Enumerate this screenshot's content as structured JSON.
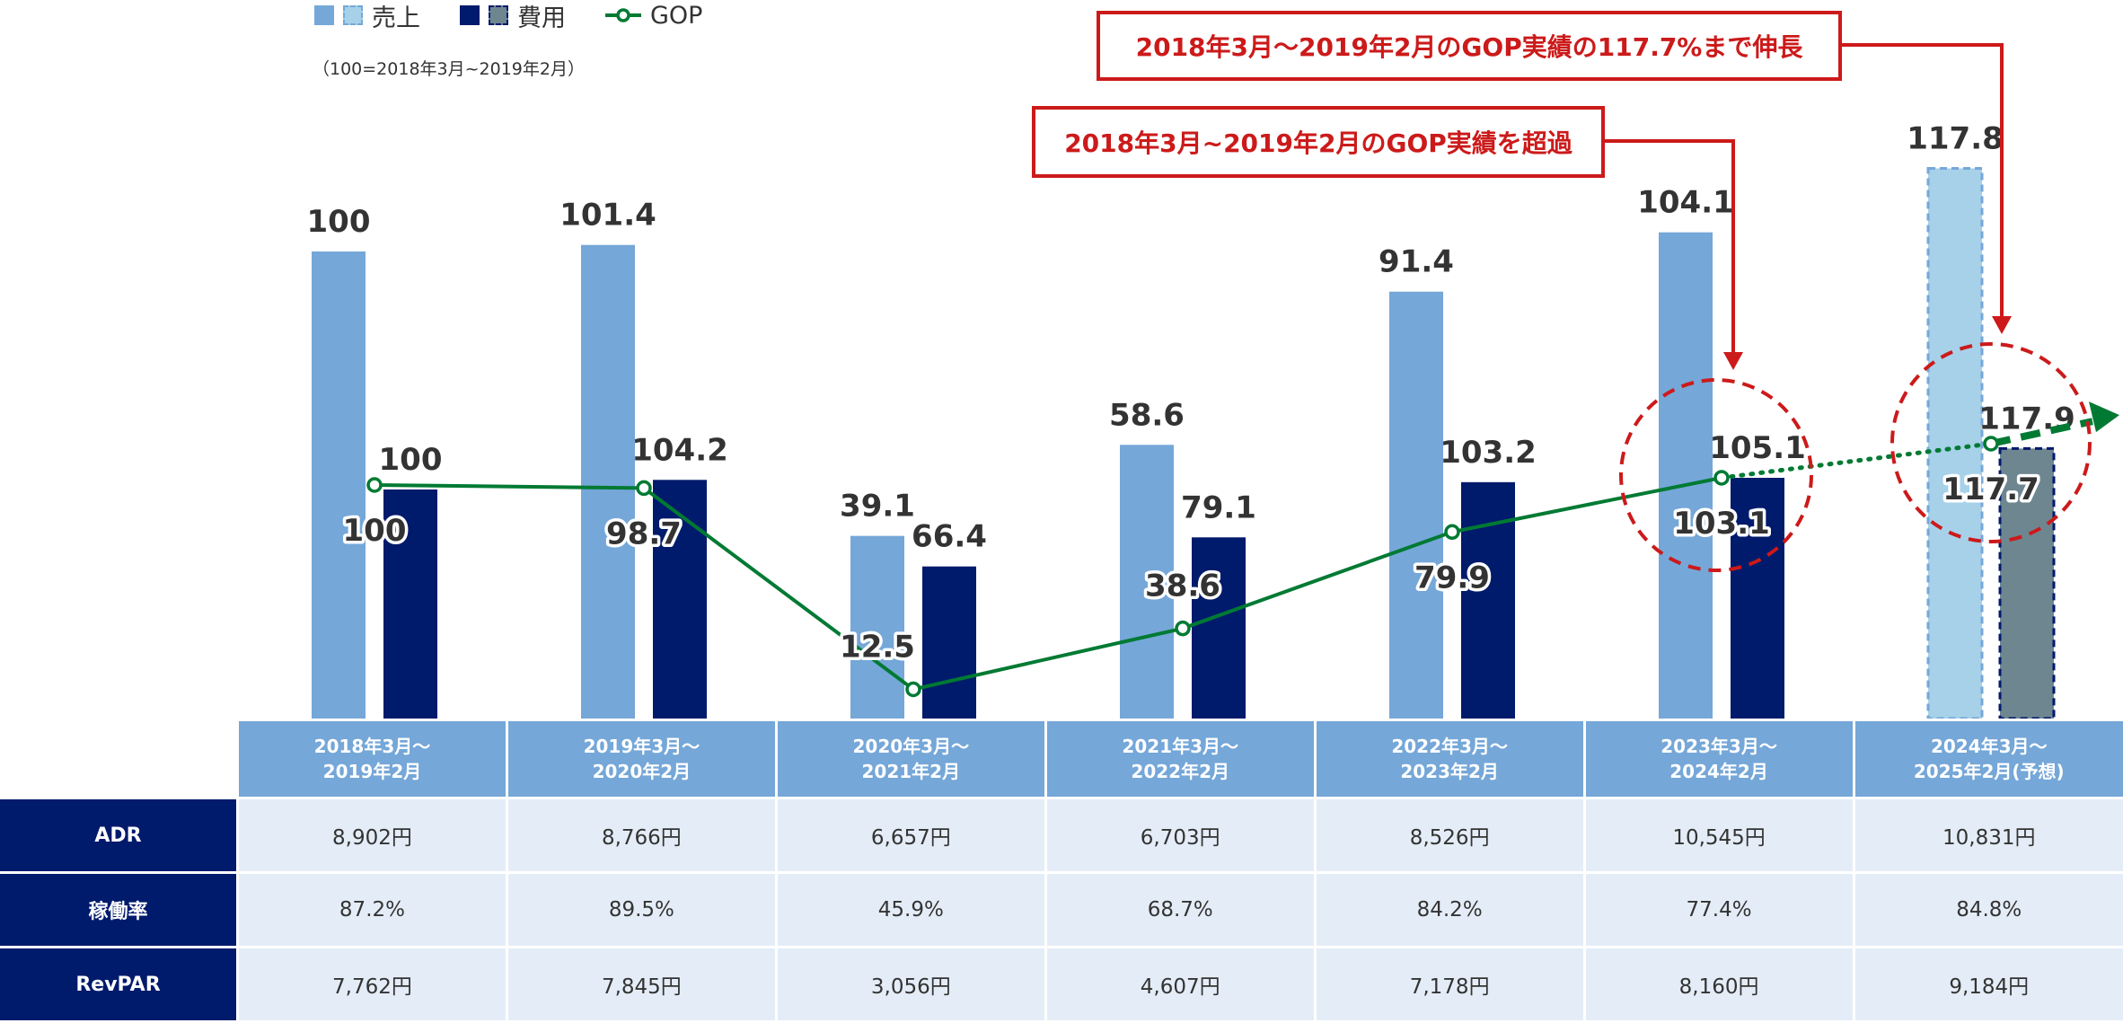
{
  "chart_data": {
    "type": "bar+line",
    "categories": [
      "2018年3月～\n2019年2月",
      "2019年3月～\n2020年2月",
      "2020年3月～\n2021年2月",
      "2021年3月～\n2022年2月",
      "2022年3月～\n2023年2月",
      "2023年3月～\n2024年2月",
      "2024年3月～\n2025年2月(予想)"
    ],
    "note": "（100=2018年3月~2019年2月）",
    "legend": {
      "sales": "売上",
      "expenses": "費用",
      "gop": "GOP"
    },
    "series": [
      {
        "name": "売上",
        "type": "bar",
        "values": [
          100,
          101.4,
          39.1,
          58.6,
          91.4,
          104.1,
          117.8
        ],
        "labels": [
          "100",
          "101.4",
          "39.1",
          "58.6",
          "91.4",
          "104.1",
          "117.8"
        ],
        "forecast_index": 6
      },
      {
        "name": "費用",
        "type": "bar",
        "values": [
          100,
          104.2,
          66.4,
          79.1,
          103.2,
          105.1,
          117.9
        ],
        "labels": [
          "100",
          "104.2",
          "66.4",
          "79.1",
          "103.2",
          "105.1",
          "117.9"
        ],
        "forecast_index": 6
      },
      {
        "name": "GOP",
        "type": "line",
        "values": [
          100,
          98.7,
          12.5,
          38.6,
          79.9,
          103.1,
          117.7
        ],
        "labels": [
          "100",
          "98.7",
          "12.5",
          "38.6",
          "79.9",
          "103.1",
          "117.7"
        ],
        "forecast_index": 6
      }
    ],
    "annotations": [
      {
        "text": "2018年3月~2019年2月のGOP実績を超過",
        "target_index": 5
      },
      {
        "text": "2018年3月～2019年2月のGOP実績の117.7%まで伸長",
        "target_index": 6
      }
    ],
    "colors": {
      "sales": "#75a7d8",
      "sales_forecast": "#a6d1e9",
      "expenses": "#001a6c",
      "expenses_forecast": "#6e8690",
      "gop": "#007a33",
      "callout": "#cc1a1a"
    }
  },
  "table": {
    "rows": [
      {
        "label": "ADR",
        "values": [
          "8,902円",
          "8,766円",
          "6,657円",
          "6,703円",
          "8,526円",
          "10,545円",
          "10,831円"
        ]
      },
      {
        "label": "稼働率",
        "values": [
          "87.2%",
          "89.5%",
          "45.9%",
          "68.7%",
          "84.2%",
          "77.4%",
          "84.8%"
        ]
      },
      {
        "label": "RevPAR",
        "values": [
          "7,762円",
          "7,845円",
          "3,056円",
          "4,607円",
          "7,178円",
          "8,160円",
          "9,184円"
        ]
      }
    ]
  }
}
